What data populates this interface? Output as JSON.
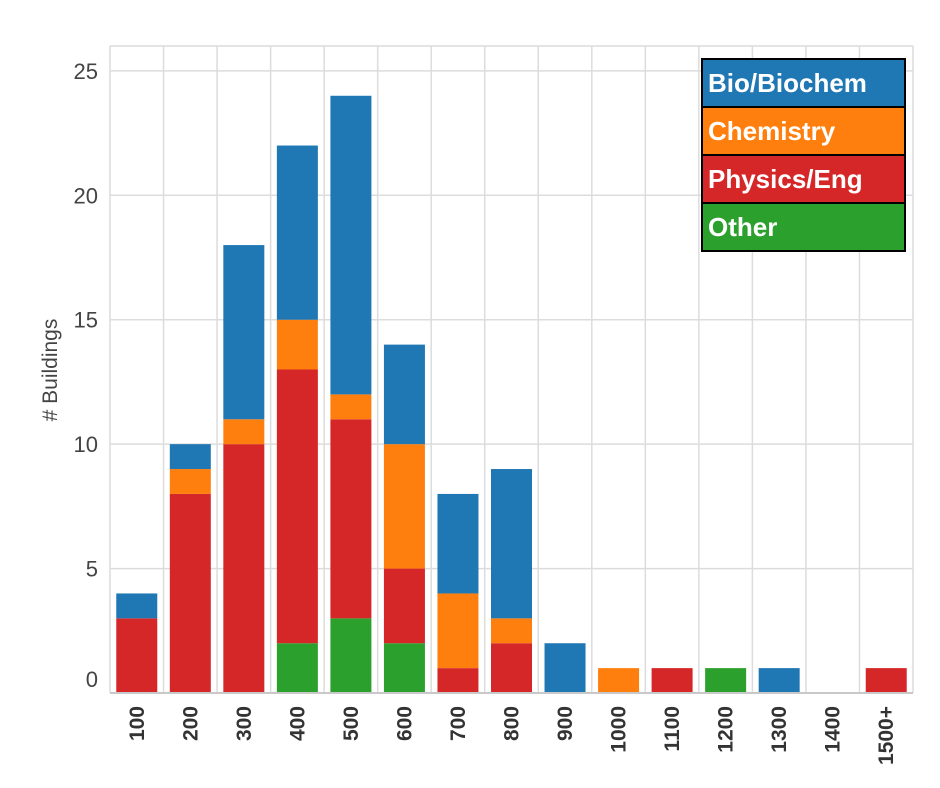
{
  "chart_data": {
    "type": "bar",
    "stacked": true,
    "title": "",
    "xlabel": "",
    "ylabel": "# Buildings",
    "ylim": [
      0,
      26
    ],
    "yticks": [
      0,
      5,
      10,
      15,
      20,
      25
    ],
    "grid": true,
    "legend_position": "top-right",
    "categories": [
      "100",
      "200",
      "300",
      "400",
      "500",
      "600",
      "700",
      "800",
      "900",
      "1000",
      "1100",
      "1200",
      "1300",
      "1400",
      "1500+"
    ],
    "series": [
      {
        "name": "Other",
        "color": "#2ca02c",
        "values": [
          0,
          0,
          0,
          2,
          3,
          2,
          0,
          0,
          0,
          0,
          0,
          1,
          0,
          0,
          0
        ]
      },
      {
        "name": "Physics/Eng",
        "color": "#d62728",
        "values": [
          3,
          8,
          10,
          11,
          8,
          3,
          1,
          2,
          0,
          0,
          1,
          0,
          0,
          0,
          1
        ]
      },
      {
        "name": "Chemistry",
        "color": "#ff7f0e",
        "values": [
          0,
          1,
          1,
          2,
          1,
          5,
          3,
          1,
          0,
          1,
          0,
          0,
          0,
          0,
          0
        ]
      },
      {
        "name": "Bio/Biochem",
        "color": "#1f77b4",
        "values": [
          1,
          1,
          7,
          7,
          12,
          4,
          4,
          6,
          2,
          0,
          0,
          0,
          1,
          0,
          0
        ]
      }
    ],
    "legend_order": [
      "Bio/Biochem",
      "Chemistry",
      "Physics/Eng",
      "Other"
    ]
  }
}
